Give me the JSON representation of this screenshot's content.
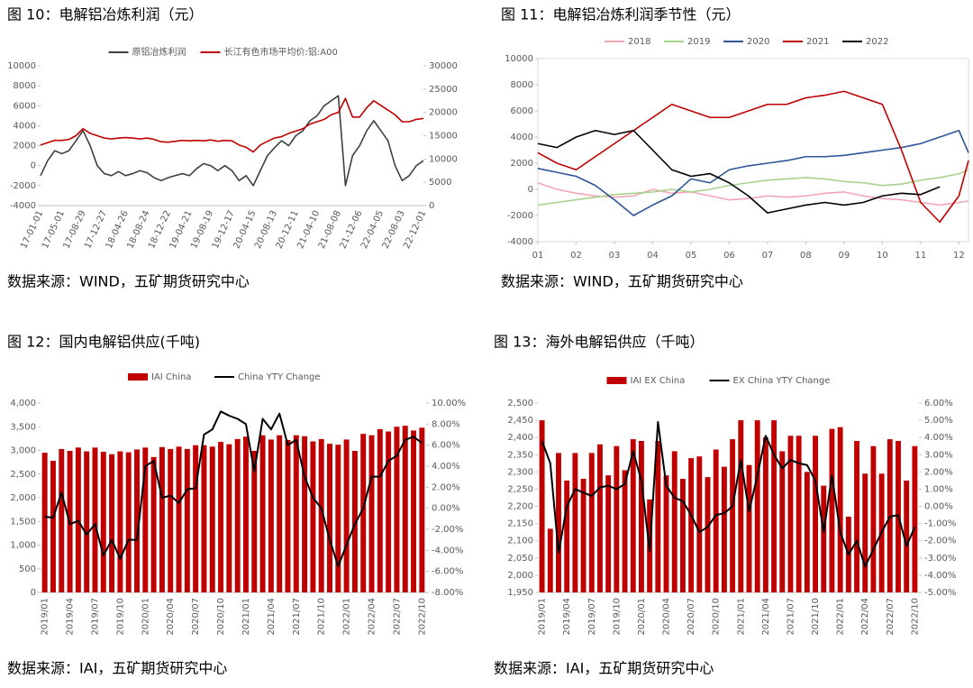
{
  "chart_data": [
    {
      "type": "line",
      "title": "图 10：电解铝冶炼利润（元）",
      "source": "数据来源：WIND，五矿期货研究中心",
      "categories": [
        "17-01-01",
        null,
        null,
        "17-05-01",
        null,
        null,
        "17-08-29",
        null,
        null,
        "17-12-27",
        null,
        null,
        "18-04-26",
        null,
        null,
        "18-08-24",
        null,
        null,
        "18-12-22",
        null,
        null,
        "19-04-21",
        null,
        null,
        "19-08-19",
        null,
        null,
        "19-12-17",
        null,
        null,
        "20-04-15",
        null,
        null,
        "20-08-13",
        null,
        null,
        "20-12-11",
        null,
        null,
        "21-04-10",
        null,
        null,
        "21-08-08",
        null,
        null,
        "21-12-06",
        null,
        null,
        "22-04-05",
        null,
        null,
        "22-08-03",
        null,
        null,
        "22-12-01"
      ],
      "series": [
        {
          "name": "原铝冶炼利润",
          "color": "#404040",
          "values": [
            -1000,
            500,
            1500,
            1200,
            1500,
            2500,
            3500,
            2000,
            0,
            -800,
            -1000,
            -600,
            -1000,
            -800,
            -500,
            -700,
            -1200,
            -1500,
            -1200,
            -1000,
            -800,
            -1000,
            -300,
            200,
            0,
            -500,
            0,
            -500,
            -1500,
            -1000,
            -2000,
            -500,
            1000,
            1800,
            2500,
            2000,
            3000,
            3500,
            4500,
            5000,
            6000,
            6500,
            7000,
            -2000,
            1000,
            2000,
            3500,
            4500,
            3500,
            2500,
            0,
            -1500,
            -1000,
            0,
            500
          ]
        },
        {
          "name": "长江有色市场平均价:铝:A00",
          "color": "#c00000",
          "axis": "y2",
          "values": [
            13000,
            13500,
            14000,
            14000,
            14200,
            15000,
            16500,
            15500,
            15000,
            14500,
            14300,
            14500,
            14600,
            14500,
            14300,
            14500,
            14200,
            13700,
            13600,
            13800,
            14000,
            13900,
            14000,
            13900,
            14100,
            13800,
            14000,
            13900,
            13000,
            12500,
            11500,
            13000,
            13800,
            14500,
            14800,
            15500,
            16000,
            16500,
            17500,
            18000,
            18500,
            19500,
            20000,
            23000,
            19000,
            19000,
            21000,
            22500,
            21500,
            20500,
            19500,
            18000,
            18000,
            18500,
            18700
          ]
        }
      ],
      "ylim": [
        -4000,
        10000
      ],
      "yticks": [
        -4000,
        -2000,
        0,
        2000,
        4000,
        6000,
        8000,
        10000
      ],
      "y2lim": [
        0,
        30000
      ],
      "y2ticks": [
        0,
        5000,
        10000,
        15000,
        20000,
        25000,
        30000
      ]
    },
    {
      "type": "line",
      "title": "图 11：电解铝冶炼利润季节性（元）",
      "source": "数据来源：WIND，五矿期货研究中心",
      "x": [
        1,
        1.5,
        2,
        2.5,
        3,
        3.5,
        4,
        4.5,
        5,
        5.5,
        6,
        6.5,
        7,
        7.5,
        8,
        8.5,
        9,
        9.5,
        10,
        10.5,
        11,
        11.5,
        12,
        12.25
      ],
      "xlim": [
        1,
        12.25
      ],
      "xticks": [
        {
          "value": 1,
          "label": "01"
        },
        {
          "value": 2,
          "label": "02"
        },
        {
          "value": 3,
          "label": "03"
        },
        {
          "value": 4,
          "label": "04"
        },
        {
          "value": 5,
          "label": "05"
        },
        {
          "value": 6,
          "label": "06"
        },
        {
          "value": 7,
          "label": "07"
        },
        {
          "value": 8,
          "label": "08"
        },
        {
          "value": 9,
          "label": "09"
        },
        {
          "value": 10,
          "label": "10"
        },
        {
          "value": 11,
          "label": "11"
        },
        {
          "value": 12,
          "label": "12"
        }
      ],
      "series": [
        {
          "name": "2018",
          "color": "#f4a6b4",
          "values": [
            500,
            0,
            -300,
            -500,
            -600,
            -500,
            0,
            -300,
            -200,
            -500,
            -800,
            -700,
            -500,
            -600,
            -500,
            -300,
            -200,
            -500,
            -700,
            -800,
            -1000,
            -1200,
            -1000,
            -900
          ]
        },
        {
          "name": "2019",
          "color": "#a9d18e",
          "values": [
            -1200,
            -1000,
            -800,
            -600,
            -400,
            -300,
            -200,
            0,
            -200,
            0,
            300,
            500,
            700,
            800,
            900,
            800,
            600,
            500,
            300,
            400,
            700,
            900,
            1200,
            1500
          ]
        },
        {
          "name": "2020",
          "color": "#2f5597",
          "values": [
            1600,
            1300,
            1000,
            300,
            -800,
            -2000,
            -1200,
            -500,
            800,
            500,
            1500,
            1800,
            2000,
            2200,
            2500,
            2500,
            2600,
            2800,
            3000,
            3200,
            3500,
            4000,
            4500,
            2800
          ]
        },
        {
          "name": "2021",
          "color": "#c00000",
          "values": [
            2800,
            2000,
            1500,
            2500,
            3500,
            4500,
            5500,
            6500,
            6000,
            5500,
            5500,
            6000,
            6500,
            6500,
            7000,
            7200,
            7500,
            7000,
            6500,
            3000,
            -1000,
            -2500,
            -500,
            2200
          ]
        },
        {
          "name": "2022",
          "color": "#000000",
          "values": [
            3500,
            3200,
            4000,
            4500,
            4200,
            4500,
            3000,
            1500,
            1000,
            1200,
            500,
            -500,
            -1800,
            -1500,
            -1200,
            -1000,
            -1200,
            -1000,
            -500,
            -300,
            -400,
            200,
            null,
            null
          ]
        }
      ],
      "ylim": [
        -4000,
        10000
      ],
      "yticks": [
        -4000,
        -2000,
        0,
        2000,
        4000,
        6000,
        8000,
        10000
      ]
    },
    {
      "type": "bar",
      "title": "图 12：国内电解铝供应(千吨)",
      "source": "数据来源：IAI，五矿期货研究中心",
      "categories": [
        "2019/01",
        null,
        null,
        "2019/04",
        null,
        null,
        "2019/07",
        null,
        null,
        "2019/10",
        null,
        null,
        "2020/01",
        null,
        null,
        "2020/04",
        null,
        null,
        "2020/07",
        null,
        null,
        "2020/10",
        null,
        null,
        "2021/01",
        null,
        null,
        "2021/04",
        null,
        null,
        "2021/07",
        null,
        null,
        "2021/10",
        null,
        null,
        "2022/01",
        null,
        null,
        "2022/04",
        null,
        null,
        "2022/07",
        null,
        null,
        "2022/10"
      ],
      "series": [
        {
          "name": "IAI China",
          "color": "#c00000",
          "values": [
            2950,
            2780,
            3030,
            2990,
            3060,
            2980,
            3060,
            2970,
            2920,
            2980,
            2960,
            3020,
            3060,
            2860,
            3070,
            3030,
            3080,
            3030,
            3110,
            3110,
            3080,
            3180,
            3130,
            3240,
            3290,
            2990,
            3320,
            3230,
            3320,
            3220,
            3320,
            3300,
            3190,
            3240,
            3140,
            3120,
            3230,
            2990,
            3350,
            3320,
            3450,
            3400,
            3500,
            3520,
            3420,
            3480
          ]
        },
        {
          "name": "China YTY Change",
          "color": "#000000",
          "type": "line",
          "axis": "y2",
          "values": [
            -0.8,
            -0.9,
            1.5,
            -1.5,
            -1.2,
            -2.5,
            -1.5,
            -4.5,
            -3,
            -4.8,
            -3,
            -3,
            4,
            4.5,
            1,
            1.2,
            0.5,
            1.8,
            1.9,
            7,
            7.5,
            9.2,
            8.8,
            8.5,
            8,
            3.5,
            8.5,
            7.5,
            9,
            6,
            6.5,
            3,
            1,
            0,
            -3,
            -5.5,
            -3.5,
            -1.5,
            0,
            3,
            3,
            4.5,
            5,
            6.5,
            6.8,
            6.2
          ]
        }
      ],
      "ylim": [
        0,
        4000
      ],
      "yticks": [
        0,
        500,
        {
          "value": 1000,
          "label": "1,000"
        },
        {
          "value": 1500,
          "label": "1,500"
        },
        {
          "value": 2000,
          "label": "2,000"
        },
        {
          "value": 2500,
          "label": "2,500"
        },
        {
          "value": 3000,
          "label": "3,000"
        },
        {
          "value": 3500,
          "label": "3,500"
        },
        {
          "value": 4000,
          "label": "4,000"
        }
      ],
      "y2lim": [
        -8,
        10
      ],
      "y2ticks": [
        {
          "value": -8,
          "label": "-8.00%"
        },
        {
          "value": -6,
          "label": "-6.00%"
        },
        {
          "value": -4,
          "label": "-4.00%"
        },
        {
          "value": -2,
          "label": "-2.00%"
        },
        {
          "value": 0,
          "label": "0.00%"
        },
        {
          "value": 2,
          "label": "2.00%"
        },
        {
          "value": 4,
          "label": "4.00%"
        },
        {
          "value": 6,
          "label": "6.00%"
        },
        {
          "value": 8,
          "label": "8.00%"
        },
        {
          "value": 10,
          "label": "10.00%"
        }
      ]
    },
    {
      "type": "bar",
      "title": "图 13：海外电解铝供应（千吨）",
      "source": "数据来源：IAI，五矿期货研究中心",
      "categories": [
        "2019/01",
        null,
        null,
        "2019/04",
        null,
        null,
        "2019/07",
        null,
        null,
        "2019/10",
        null,
        null,
        "2020/01",
        null,
        null,
        "2020/04",
        null,
        null,
        "2020/07",
        null,
        null,
        "2020/10",
        null,
        null,
        "2021/01",
        null,
        null,
        "2021/04",
        null,
        null,
        "2021/07",
        null,
        null,
        "2021/10",
        null,
        null,
        "2022/01",
        null,
        null,
        "2022/04",
        null,
        null,
        "2022/07",
        null,
        null,
        "2022/10"
      ],
      "series": [
        {
          "name": "IAI EX China",
          "color": "#c00000",
          "values": [
            2450,
            2135,
            2355,
            2275,
            2355,
            2280,
            2355,
            2380,
            2290,
            2375,
            2305,
            2395,
            2390,
            2220,
            2390,
            2290,
            2360,
            2280,
            2340,
            2345,
            2285,
            2365,
            2315,
            2395,
            2450,
            2320,
            2450,
            2400,
            2450,
            2360,
            2405,
            2405,
            2300,
            2405,
            2260,
            2425,
            2430,
            2170,
            2390,
            2295,
            2375,
            2295,
            2395,
            2390,
            2275,
            2375
          ]
        },
        {
          "name": "EX China YTY Change",
          "color": "#000000",
          "type": "line",
          "axis": "y2",
          "values": [
            3.8,
            2.5,
            -2.7,
            0,
            1,
            0.8,
            0.6,
            1.1,
            1.2,
            1,
            1.3,
            3.2,
            1.5,
            -2.6,
            4.9,
            1.2,
            0.5,
            0.3,
            -0.5,
            -1.5,
            -1.2,
            -0.5,
            -0.4,
            0,
            2.7,
            -0.3,
            1.8,
            4.1,
            3,
            2.2,
            2.7,
            2.5,
            2.4,
            1.5,
            -1.5,
            1.8,
            -1.5,
            -2.8,
            -2,
            -3.5,
            -2.5,
            -1.5,
            -0.6,
            -0.5,
            -2.3,
            -1.2
          ]
        }
      ],
      "ylim": [
        1950,
        2500
      ],
      "yticks": [
        {
          "value": 1950,
          "label": "1,950"
        },
        {
          "value": 2000,
          "label": "2,000"
        },
        {
          "value": 2050,
          "label": "2,050"
        },
        {
          "value": 2100,
          "label": "2,100"
        },
        {
          "value": 2150,
          "label": "2,150"
        },
        {
          "value": 2200,
          "label": "2,200"
        },
        {
          "value": 2250,
          "label": "2,250"
        },
        {
          "value": 2300,
          "label": "2,300"
        },
        {
          "value": 2350,
          "label": "2,350"
        },
        {
          "value": 2400,
          "label": "2,400"
        },
        {
          "value": 2450,
          "label": "2,450"
        },
        {
          "value": 2500,
          "label": "2,500"
        }
      ],
      "y2lim": [
        -5,
        6
      ],
      "y2ticks": [
        {
          "value": -5,
          "label": "-5.00%"
        },
        {
          "value": -4,
          "label": "-4.00%"
        },
        {
          "value": -3,
          "label": "-3.00%"
        },
        {
          "value": -2,
          "label": "-2.00%"
        },
        {
          "value": -1,
          "label": "-1.00%"
        },
        {
          "value": 0,
          "label": "0.00%"
        },
        {
          "value": 1,
          "label": "1.00%"
        },
        {
          "value": 2,
          "label": "2.00%"
        },
        {
          "value": 3,
          "label": "3.00%"
        },
        {
          "value": 4,
          "label": "4.00%"
        },
        {
          "value": 5,
          "label": "5.00%"
        },
        {
          "value": 6,
          "label": "6.00%"
        }
      ]
    }
  ]
}
